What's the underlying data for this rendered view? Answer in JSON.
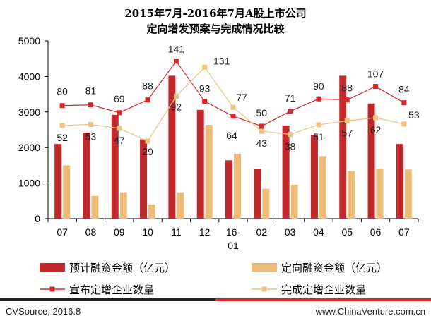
{
  "title_line1": "2015年7月-2016年7月A股上市公司",
  "title_line2": "定向增发预案与完成情况比较",
  "source_left": "CVSource, 2016.8",
  "source_right": "www.ChinaVenture.com.cn",
  "colors": {
    "planned_bar": "#c0282a",
    "actual_bar": "#ebbd78",
    "announced_line": "#d6282b",
    "completed_line": "#f0c27e",
    "footer_dark": "#222222",
    "footer_red": "#d6282b"
  },
  "chart_data": {
    "type": "bar",
    "categories": [
      "07",
      "08",
      "09",
      "10",
      "11",
      "12",
      "16-\n01",
      "02",
      "03",
      "04",
      "05",
      "06",
      "07"
    ],
    "category_labels": [
      [
        "07"
      ],
      [
        "08"
      ],
      [
        "09"
      ],
      [
        "10"
      ],
      [
        "11"
      ],
      [
        "12"
      ],
      [
        "16-",
        "01"
      ],
      [
        "02"
      ],
      [
        "03"
      ],
      [
        "04"
      ],
      [
        "05"
      ],
      [
        "06"
      ],
      [
        "07"
      ]
    ],
    "ylim": [
      0,
      5000
    ],
    "yticks": [
      "0",
      "1000",
      "2000",
      "3000",
      "4000",
      "5000"
    ],
    "ytick_values": [
      0,
      1000,
      2000,
      3000,
      4000,
      5000
    ],
    "grid": false,
    "legend_position": "bottom",
    "series": [
      {
        "name": "预计融资金额（亿元）",
        "kind": "bar",
        "values": [
          2100,
          2420,
          2920,
          2230,
          4020,
          3060,
          1640,
          1400,
          2620,
          2360,
          4020,
          3240,
          2100
        ]
      },
      {
        "name": "定向融资金额（亿元）",
        "kind": "bar",
        "values": [
          1500,
          640,
          740,
          400,
          740,
          2640,
          1820,
          840,
          950,
          1760,
          1340,
          1400,
          1380
        ]
      },
      {
        "name": "宣布定增企业数量",
        "kind": "line",
        "values": [
          80,
          81,
          69,
          88,
          141,
          93,
          64,
          50,
          71,
          90,
          88,
          107,
          84
        ],
        "value_labels": [
          "80",
          "81",
          "69",
          "88",
          "141",
          "93",
          "64",
          "50",
          "71",
          "90",
          "88",
          "107",
          "84"
        ],
        "plot_values": [
          3180,
          3200,
          2980,
          3340,
          4430,
          3300,
          2880,
          2600,
          3020,
          3370,
          3340,
          3720,
          3260
        ]
      },
      {
        "name": "完成定增企业数量",
        "kind": "line",
        "values": [
          52,
          53,
          47,
          29,
          92,
          131,
          77,
          43,
          38,
          51,
          57,
          62,
          53
        ],
        "value_labels": [
          "52",
          "53",
          "47",
          "29",
          "92",
          "131",
          "77",
          "43",
          "38",
          "51",
          "57",
          "62",
          "53"
        ],
        "plot_values": [
          2620,
          2650,
          2540,
          2180,
          3440,
          4260,
          3130,
          2460,
          2370,
          2640,
          2750,
          2840,
          2660
        ]
      }
    ]
  }
}
